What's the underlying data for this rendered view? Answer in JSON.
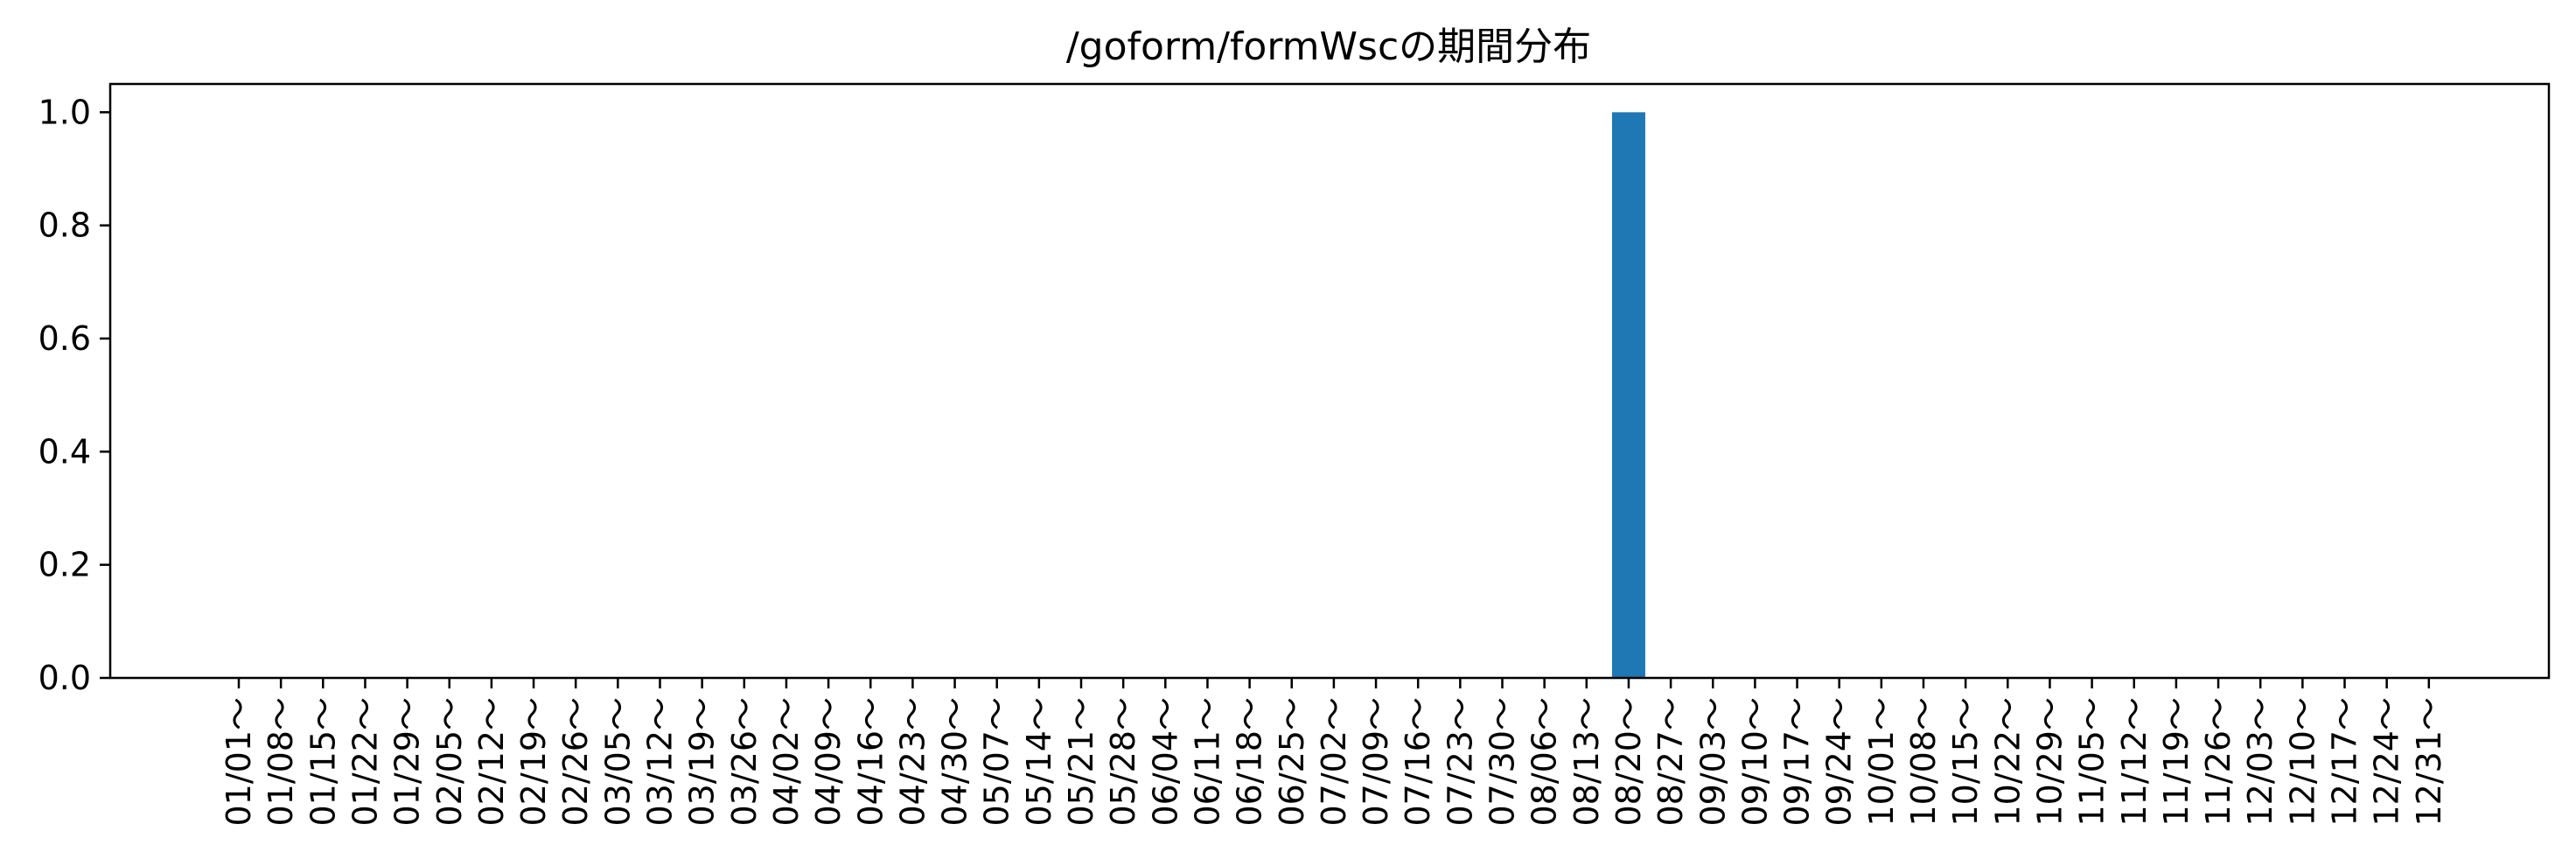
{
  "chart_data": {
    "type": "bar",
    "title": "/goform/formWscの期間分布",
    "xlabel": "",
    "ylabel": "",
    "ylim": [
      0,
      1.05
    ],
    "yticks": [
      0.0,
      0.2,
      0.4,
      0.6,
      0.8,
      1.0
    ],
    "ytick_labels": [
      "0.0",
      "0.2",
      "0.4",
      "0.6",
      "0.8",
      "1.0"
    ],
    "grid": false,
    "bar_color": "#1f77b4",
    "categories": [
      "01/01～",
      "01/08～",
      "01/15～",
      "01/22～",
      "01/29～",
      "02/05～",
      "02/12～",
      "02/19～",
      "02/26～",
      "03/05～",
      "03/12～",
      "03/19～",
      "03/26～",
      "04/02～",
      "04/09～",
      "04/16～",
      "04/23～",
      "04/30～",
      "05/07～",
      "05/14～",
      "05/21～",
      "05/28～",
      "06/04～",
      "06/11～",
      "06/18～",
      "06/25～",
      "07/02～",
      "07/09～",
      "07/16～",
      "07/23～",
      "07/30～",
      "08/06～",
      "08/13～",
      "08/20～",
      "08/27～",
      "09/03～",
      "09/10～",
      "09/17～",
      "09/24～",
      "10/01～",
      "10/08～",
      "10/15～",
      "10/22～",
      "10/29～",
      "11/05～",
      "11/12～",
      "11/19～",
      "11/26～",
      "12/03～",
      "12/10～",
      "12/17～",
      "12/24～",
      "12/31～"
    ],
    "values": [
      0,
      0,
      0,
      0,
      0,
      0,
      0,
      0,
      0,
      0,
      0,
      0,
      0,
      0,
      0,
      0,
      0,
      0,
      0,
      0,
      0,
      0,
      0,
      0,
      0,
      0,
      0,
      0,
      0,
      0,
      0,
      0,
      0,
      1,
      0,
      0,
      0,
      0,
      0,
      0,
      0,
      0,
      0,
      0,
      0,
      0,
      0,
      0,
      0,
      0,
      0,
      0,
      0
    ]
  }
}
